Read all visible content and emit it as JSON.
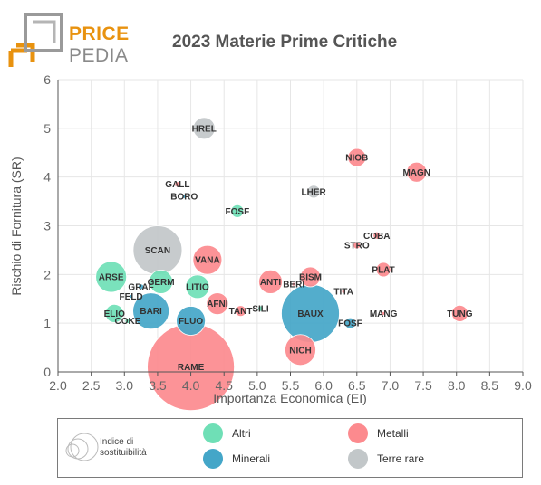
{
  "brand": {
    "line1": "PRICE",
    "line2": "PEDIA"
  },
  "title": "2023 Materie Prime Critiche",
  "chart_data": {
    "type": "scatter",
    "title": "2023 Materie Prime Critiche",
    "xlabel": "Importanza Economica (EI)",
    "ylabel": "Rischio di Fornitura (SR)",
    "xlim": [
      2.0,
      9.0
    ],
    "ylim": [
      0,
      6
    ],
    "xticks": [
      "2.0",
      "2.5",
      "3.0",
      "3.5",
      "4.0",
      "4.5",
      "5.0",
      "5.5",
      "6.0",
      "6.5",
      "7.0",
      "7.5",
      "8.0",
      "8.5",
      "9.0"
    ],
    "yticks": [
      "0",
      "1",
      "2",
      "3",
      "4",
      "5",
      "6"
    ],
    "size_legend_label": "Indice di sostituibilità",
    "categories": [
      {
        "key": "altri",
        "name": "Altri",
        "color": "#6fdfb6"
      },
      {
        "key": "metalli",
        "name": "Metalli",
        "color": "#fc8a8e"
      },
      {
        "key": "minerali",
        "name": "Minerali",
        "color": "#44a6c8"
      },
      {
        "key": "terre",
        "name": "Terre rare",
        "color": "#c2c7c9"
      }
    ],
    "points": [
      {
        "label": "HREL",
        "x": 4.2,
        "y": 5.0,
        "size": 12,
        "cat": "terre"
      },
      {
        "label": "NIOB",
        "x": 6.5,
        "y": 4.4,
        "size": 10,
        "cat": "metalli"
      },
      {
        "label": "MAGN",
        "x": 7.4,
        "y": 4.1,
        "size": 11,
        "cat": "metalli"
      },
      {
        "label": "GALL",
        "x": 3.8,
        "y": 3.85,
        "size": 3,
        "cat": "metalli"
      },
      {
        "label": "BORO",
        "x": 3.9,
        "y": 3.6,
        "size": 2,
        "cat": "minerali"
      },
      {
        "label": "LHER",
        "x": 5.85,
        "y": 3.7,
        "size": 7,
        "cat": "terre"
      },
      {
        "label": "FOSF",
        "x": 4.7,
        "y": 3.3,
        "size": 7,
        "cat": "altri"
      },
      {
        "label": "COBA",
        "x": 6.8,
        "y": 2.8,
        "size": 4,
        "cat": "metalli"
      },
      {
        "label": "STRO",
        "x": 6.5,
        "y": 2.6,
        "size": 4,
        "cat": "metalli"
      },
      {
        "label": "SCAN",
        "x": 3.5,
        "y": 2.5,
        "size": 27,
        "cat": "terre"
      },
      {
        "label": "VANA",
        "x": 4.25,
        "y": 2.3,
        "size": 16,
        "cat": "metalli"
      },
      {
        "label": "PLAT",
        "x": 6.9,
        "y": 2.1,
        "size": 8,
        "cat": "metalli"
      },
      {
        "label": "ARSE",
        "x": 2.8,
        "y": 1.95,
        "size": 17,
        "cat": "altri"
      },
      {
        "label": "BISM",
        "x": 5.8,
        "y": 1.95,
        "size": 11,
        "cat": "metalli"
      },
      {
        "label": "GERM",
        "x": 3.55,
        "y": 1.85,
        "size": 13,
        "cat": "altri"
      },
      {
        "label": "ANTI",
        "x": 5.2,
        "y": 1.85,
        "size": 13,
        "cat": "metalli"
      },
      {
        "label": "GRAF",
        "x": 3.25,
        "y": 1.75,
        "size": 3,
        "cat": "minerali"
      },
      {
        "label": "LITIO",
        "x": 4.1,
        "y": 1.75,
        "size": 13,
        "cat": "altri"
      },
      {
        "label": "BERI",
        "x": 5.55,
        "y": 1.8,
        "size": 2,
        "cat": "metalli"
      },
      {
        "label": "TITA",
        "x": 6.3,
        "y": 1.65,
        "size": 2,
        "cat": "metalli"
      },
      {
        "label": "FELD",
        "x": 3.1,
        "y": 1.55,
        "size": 2,
        "cat": "minerali"
      },
      {
        "label": "AFNI",
        "x": 4.4,
        "y": 1.4,
        "size": 12,
        "cat": "metalli"
      },
      {
        "label": "SILI",
        "x": 5.05,
        "y": 1.3,
        "size": 3,
        "cat": "altri"
      },
      {
        "label": "TANT",
        "x": 4.75,
        "y": 1.25,
        "size": 6,
        "cat": "metalli"
      },
      {
        "label": "BARI",
        "x": 3.4,
        "y": 1.25,
        "size": 20,
        "cat": "minerali"
      },
      {
        "label": "BAUX",
        "x": 5.8,
        "y": 1.2,
        "size": 32,
        "cat": "minerali"
      },
      {
        "label": "ELIO",
        "x": 2.85,
        "y": 1.2,
        "size": 10,
        "cat": "altri"
      },
      {
        "label": "FLUO",
        "x": 4.0,
        "y": 1.05,
        "size": 16,
        "cat": "minerali"
      },
      {
        "label": "MANG",
        "x": 6.9,
        "y": 1.2,
        "size": 2,
        "cat": "metalli"
      },
      {
        "label": "TUNG",
        "x": 8.05,
        "y": 1.2,
        "size": 9,
        "cat": "metalli"
      },
      {
        "label": "FOSF",
        "x": 6.4,
        "y": 1.0,
        "size": 6,
        "cat": "minerali"
      },
      {
        "label": "COKE",
        "x": 3.05,
        "y": 1.05,
        "size": 3,
        "cat": "altri"
      },
      {
        "label": "NICH",
        "x": 5.65,
        "y": 0.45,
        "size": 17,
        "cat": "metalli"
      },
      {
        "label": "RAME",
        "x": 4.0,
        "y": 0.1,
        "size": 48,
        "cat": "metalli"
      }
    ]
  }
}
